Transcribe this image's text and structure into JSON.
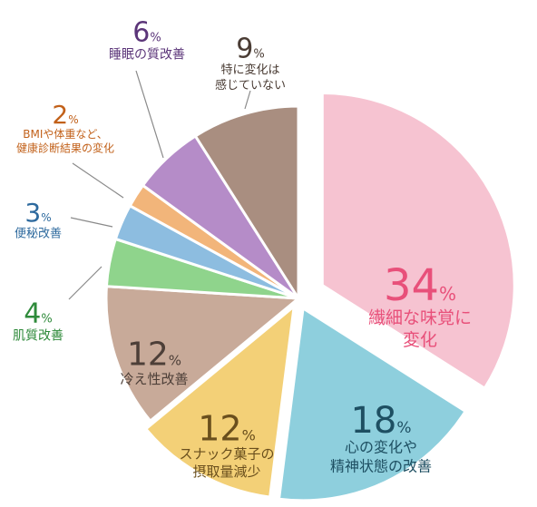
{
  "chart_data": {
    "type": "pie",
    "title": "",
    "unit": "%",
    "slices": [
      {
        "value": 34,
        "label": [
          "繊細な味覚に",
          "変化"
        ],
        "color": "#f6c3d1",
        "text_color": "#e8507a"
      },
      {
        "value": 18,
        "label": [
          "心の変化や",
          "精神状態の改善"
        ],
        "color": "#8ecfdd",
        "text_color": "#1e4f62"
      },
      {
        "value": 12,
        "label": [
          "スナック菓子の",
          "摂取量減少"
        ],
        "color": "#f3d077",
        "text_color": "#6a4f1d"
      },
      {
        "value": 12,
        "label": [
          "冷え性改善"
        ],
        "color": "#c8aa99",
        "text_color": "#4d3f38"
      },
      {
        "value": 4,
        "label": [
          "肌質改善"
        ],
        "color": "#8fd48c",
        "text_color": "#2e8a3a"
      },
      {
        "value": 3,
        "label": [
          "便秘改善"
        ],
        "color": "#8dbde0",
        "text_color": "#2e6a9e"
      },
      {
        "value": 2,
        "label": [
          "BMIや体重など、",
          "健康診断結果の変化"
        ],
        "color": "#f2b57a",
        "text_color": "#c2611a"
      },
      {
        "value": 6,
        "label": [
          "睡眠の質改善"
        ],
        "color": "#b58cc8",
        "text_color": "#5b3579"
      },
      {
        "value": 9,
        "label": [
          "特に変化は",
          "感じていない"
        ],
        "color": "#a98e80",
        "text_color": "#4a3c34"
      }
    ]
  }
}
